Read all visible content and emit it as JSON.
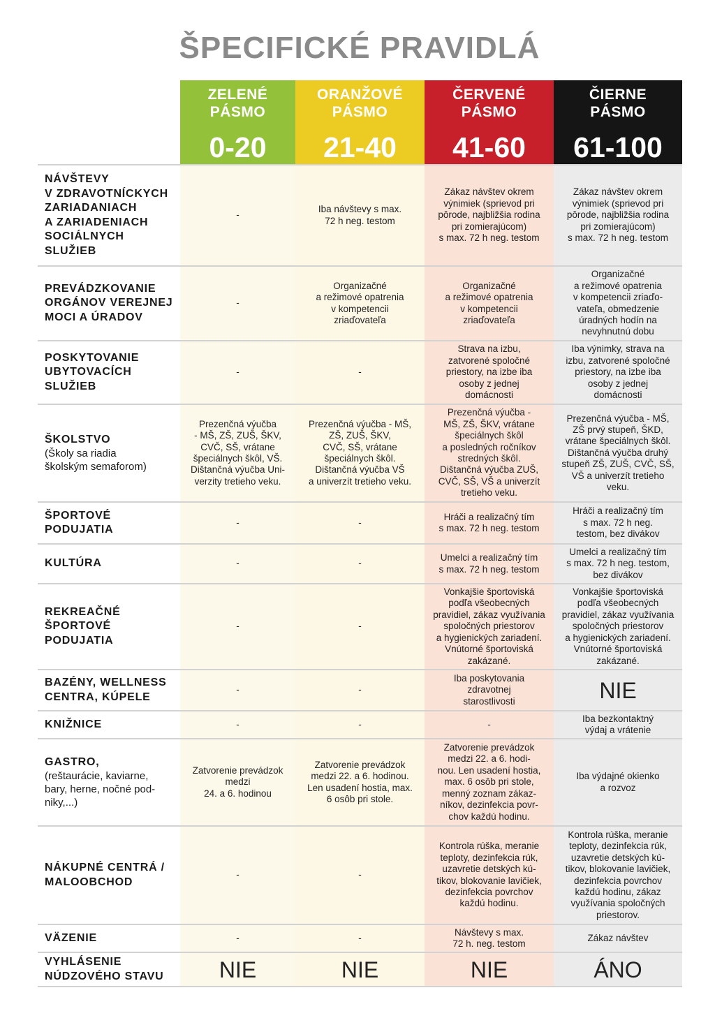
{
  "title": "ŠPECIFICKÉ PRAVIDLÁ",
  "colors": {
    "green": "#93c23a",
    "orange": "#eccb23",
    "red": "#c8202a",
    "black": "#151515"
  },
  "zones": [
    {
      "name": "ZELENÉ\nPÁSMO",
      "range": "0-20",
      "color": "#93c23a"
    },
    {
      "name": "ORANŽOVÉ\nPÁSMO",
      "range": "21-40",
      "color": "#eccb23"
    },
    {
      "name": "ČERVENÉ\nPÁSMO",
      "range": "41-60",
      "color": "#c8202a"
    },
    {
      "name": "ČIERNE\nPÁSMO",
      "range": "61-100",
      "color": "#151515"
    }
  ],
  "rows": [
    {
      "label": "NÁVŠTEVY\nV ZDRAVOTNÍCKYCH\nZARIADANIACH\nA ZARIADENIACH\nSOCIÁLNYCH\nSLUŽIEB",
      "cells": [
        "-",
        "Iba návštevy s max.\n72 h neg. testom",
        "Zákaz návštev okrem\nvýnimiek (sprievod pri\npôrode, najbližšia rodina\npri zomierajúcom)\ns max. 72 h neg. testom",
        "Zákaz návštev okrem\nvýnimiek (sprievod pri\npôrode, najbližšia rodina\npri zomierajúcom)\ns max. 72 h neg. testom"
      ]
    },
    {
      "label": "PREVÁDZKOVANIE\nORGÁNOV VEREJNEJ\nMOCI A ÚRADOV",
      "cells": [
        "-",
        "Organizačné\na režimové opatrenia\nv kompetencii\nzriaďovateľa",
        "Organizačné\na režimové opatrenia\nv kompetencii\nzriaďovateľa",
        "Organizačné\na režimové opatrenia\nv kompetencii zriaďo-\nvateľa, obmedzenie\núradných hodín na\nnevyhnutnú dobu"
      ]
    },
    {
      "label": "POSKYTOVANIE\nUBYTOVACÍCH\nSLUŽIEB",
      "cells": [
        "-",
        "-",
        "Strava na izbu,\nzatvorené spoločné\npriestory, na izbe iba\nosoby z jednej\ndomácnosti",
        "Iba výnimky, strava na\nizbu, zatvorené spoločné\npriestory, na izbe iba\nosoby z jednej\ndomácnosti"
      ]
    },
    {
      "label": "ŠKOLSTVO",
      "sub": "(Školy sa riadia\nškolským semaforom)",
      "cells": [
        "Prezenčná výučba\n- MŠ, ZŠ, ZUŠ, ŠKV,\nCVČ, SŠ, vrátane\nšpeciálnych škôl, VŠ.\nDištančná výučba Uni-\nverzity tretieho veku.",
        "Prezenčná výučba - MŠ,\nZŠ, ZUŠ, ŠKV,\nCVČ, SŠ, vrátane\nšpeciálnych škôl.\nDištančná výučba VŠ\na univerzít tretieho veku.",
        "Prezenčná výučba -\nMŠ, ZŠ, ŠKV, vrátane\nšpeciálnych škôl\na posledných ročníkov\nstredných škôl.\nDištančná výučba ZUŠ,\nCVČ, SŠ, VŠ a univerzít\ntretieho veku.",
        "Prezenčná výučba - MŠ,\nZŠ prvý stupeň, ŠKD,\nvrátane špeciálnych škôl.\nDištančná výučba druhý\nstupeň ZŠ, ZUŠ, CVČ, SŠ,\nVŠ a univerzít tretieho\nveku."
      ]
    },
    {
      "label": "ŠPORTOVÉ\nPODUJATIA",
      "cells": [
        "-",
        "-",
        "Hráči a realizačný tím\ns max. 72 h neg. testom",
        "Hráči a realizačný tím\ns max. 72 h neg.\ntestom, bez divákov"
      ]
    },
    {
      "label": "KULTÚRA",
      "cells": [
        "-",
        "-",
        "Umelci a realizačný tím\ns max. 72 h neg. testom",
        "Umelci a realizačný tím\ns max. 72 h neg. testom,\nbez divákov"
      ]
    },
    {
      "label": "REKREAČNÉ\nŠPORTOVÉ\nPODUJATIA",
      "cells": [
        "-",
        "-",
        "Vonkajšie športoviská\npodľa všeobecných\npravidiel, zákaz využívania\nspoločných priestorov\na hygienických zariadení.\nVnútorné športoviská\nzakázané.",
        "Vonkajšie športoviská\npodľa všeobecných\npravidiel, zákaz využívania\nspoločných priestorov\na hygienických zariadení.\nVnútorné športoviská\nzakázané."
      ]
    },
    {
      "label": "BAZÉNY, WELLNESS\nCENTRA, KÚPELE",
      "cells": [
        "-",
        "-",
        "Iba poskytovania\nzdravotnej\nstarostlivosti",
        "NIE"
      ],
      "big": [
        3
      ]
    },
    {
      "label": "KNIŽNICE",
      "cells": [
        "-",
        "-",
        "-",
        "Iba bezkontaktný\nvýdaj a vrátenie"
      ]
    },
    {
      "label": "GASTRO,",
      "sub": "(reštaurácie, kaviarne,\nbary, herne, nočné pod-\nniky,...)",
      "cells": [
        "Zatvorenie prevádzok\nmedzi\n24. a 6. hodinou",
        "Zatvorenie prevádzok\nmedzi 22. a 6. hodinou.\nLen usadení hostia, max.\n6 osôb pri stole.",
        "Zatvorenie prevádzok\nmedzi 22. a 6. hodi-\nnou. Len usadení hostia,\nmax. 6 osôb pri stole,\nmenný zoznam zákaz-\nníkov, dezinfekcia povr-\nchov každú hodinu.",
        "Iba výdajné okienko\na rozvoz"
      ]
    },
    {
      "label": "NÁKUPNÉ CENTRÁ /\nMALOOBCHOD",
      "cells": [
        "-",
        "-",
        "Kontrola rúška, meranie\nteploty, dezinfekcia rúk,\nuzavretie detských kú-\ntikov, blokovanie lavičiek,\ndezinfekcia povrchov\nkaždú hodinu.",
        "Kontrola rúška, meranie\nteploty, dezinfekcia rúk,\nuzavretie detských kú-\ntikov, blokovanie lavičiek,\ndezinfekcia povrchov\nkaždú hodinu, zákaz\nvyužívania spoločných\npriestorov."
      ]
    },
    {
      "label": "VÄZENIE",
      "cells": [
        "-",
        "-",
        "Návštevy s max.\n72 h. neg. testom",
        "Zákaz návštev"
      ]
    },
    {
      "label": "VYHLÁSENIE\nNÚDZOVÉHO STAVU",
      "cells": [
        "NIE",
        "NIE",
        "NIE",
        "ÁNO"
      ],
      "big": [
        0,
        1,
        2,
        3
      ]
    }
  ]
}
